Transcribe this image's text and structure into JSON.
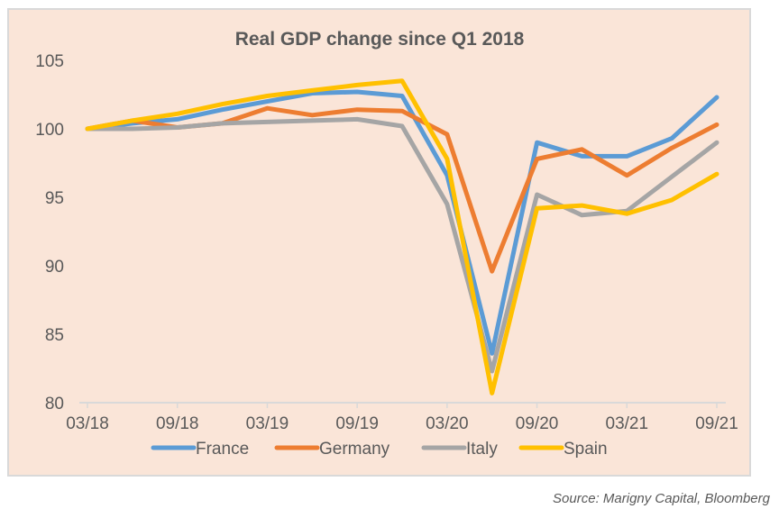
{
  "chart_data": {
    "type": "line",
    "title": "Real GDP change since Q1 2018",
    "xlabel": "",
    "ylabel": "",
    "ylim": [
      80,
      105
    ],
    "yticks": [
      "80",
      "85",
      "90",
      "95",
      "100",
      "105"
    ],
    "ytick_values": [
      80,
      85,
      90,
      95,
      100,
      105
    ],
    "xtick_labels": [
      "03/18",
      "09/18",
      "03/19",
      "09/19",
      "03/20",
      "09/20",
      "03/21",
      "09/21"
    ],
    "x": [
      "Q1 2018",
      "Q2 2018",
      "Q3 2018",
      "Q4 2018",
      "Q1 2019",
      "Q2 2019",
      "Q3 2019",
      "Q4 2019",
      "Q1 2020",
      "Q2 2020",
      "Q3 2020",
      "Q4 2020",
      "Q1 2021",
      "Q2 2021",
      "Q3 2021"
    ],
    "grid": false,
    "legend_position": "bottom",
    "series": [
      {
        "name": "France",
        "color": "#5b9bd5",
        "values": [
          100,
          100.4,
          100.7,
          101.4,
          102.0,
          102.6,
          102.7,
          102.4,
          96.6,
          83.6,
          99.0,
          98.0,
          98.0,
          99.3,
          102.3
        ]
      },
      {
        "name": "Germany",
        "color": "#ed7d31",
        "values": [
          100,
          100.6,
          100.1,
          100.4,
          101.5,
          101.0,
          101.4,
          101.3,
          99.6,
          89.6,
          97.8,
          98.5,
          96.6,
          98.6,
          100.3
        ]
      },
      {
        "name": "Italy",
        "color": "#a5a5a5",
        "values": [
          100,
          100.0,
          100.1,
          100.4,
          100.5,
          100.6,
          100.7,
          100.2,
          94.5,
          82.3,
          95.2,
          93.7,
          94.0,
          96.5,
          99.0
        ]
      },
      {
        "name": "Spain",
        "color": "#ffc000",
        "values": [
          100,
          100.6,
          101.1,
          101.8,
          102.4,
          102.8,
          103.2,
          103.5,
          97.8,
          80.7,
          94.2,
          94.4,
          93.8,
          94.8,
          96.7
        ]
      }
    ]
  },
  "source": "Source: Marigny Capital, Bloomberg"
}
